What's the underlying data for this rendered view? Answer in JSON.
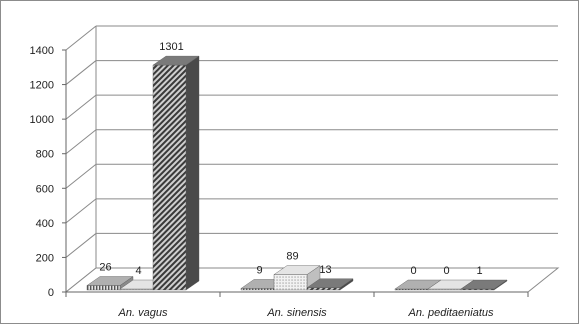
{
  "chart_data": {
    "type": "bar",
    "three_d": true,
    "categories": [
      "An. vagus",
      "An. sinensis",
      "An. peditaeniatus"
    ],
    "series": [
      {
        "values": [
          26,
          9,
          0
        ],
        "pattern": "vertical-stripes"
      },
      {
        "values": [
          4,
          89,
          0
        ],
        "pattern": "dots"
      },
      {
        "values": [
          1301,
          13,
          1
        ],
        "pattern": "diagonal-stripes"
      }
    ],
    "ylim": [
      0,
      1400
    ],
    "yticks": [
      "0",
      "200",
      "400",
      "600",
      "800",
      "1000",
      "1200",
      "1400"
    ],
    "data_labels": [
      [
        "26",
        "9",
        "0"
      ],
      [
        "4",
        "89",
        "0"
      ],
      [
        "1301",
        "13",
        "1"
      ]
    ],
    "grid": true,
    "legend": "none",
    "colors": {
      "gridline": "#8a8a8a",
      "bar_dark": "#555555",
      "bar_light": "#d8d8d8"
    }
  }
}
